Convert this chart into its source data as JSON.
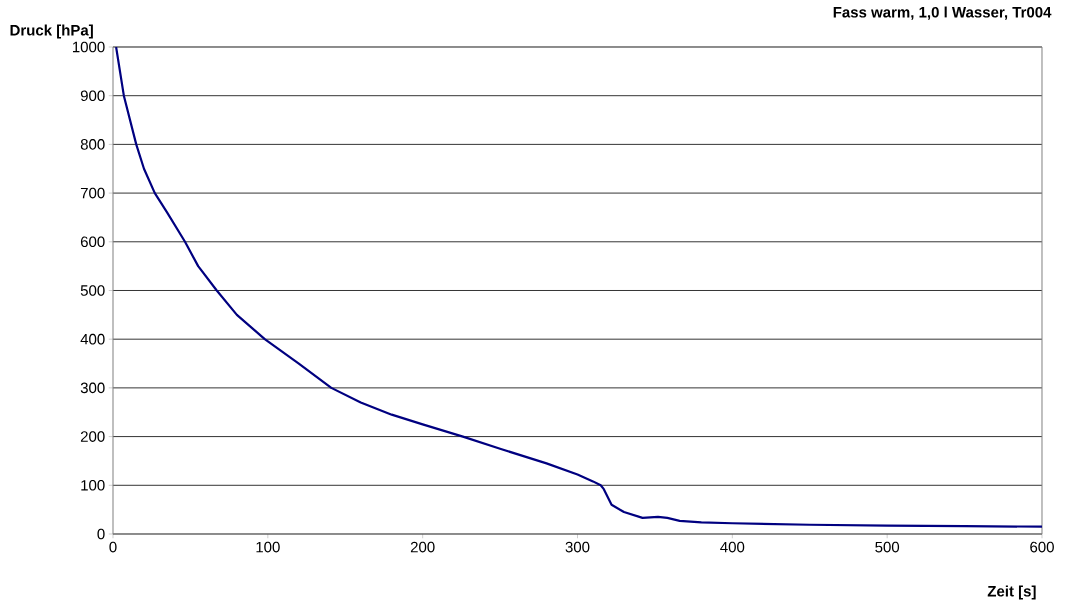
{
  "chart_data": {
    "type": "line",
    "title": "Fass warm, 1,0 l Wasser, Tr004",
    "xlabel": "Zeit [s]",
    "ylabel": "Druck [hPa]",
    "xlim": [
      0,
      600
    ],
    "ylim": [
      0,
      1000
    ],
    "xticks": [
      0,
      100,
      200,
      300,
      400,
      500,
      600
    ],
    "yticks": [
      0,
      100,
      200,
      300,
      400,
      500,
      600,
      700,
      800,
      900,
      1000
    ],
    "grid": "y",
    "marker": "none",
    "line_style": "solid",
    "series": [
      {
        "color": "#000080",
        "x": [
          2,
          7,
          15,
          20,
          27,
          35,
          46.5,
          55,
          67,
          80,
          98,
          120,
          141,
          160,
          180,
          200,
          226,
          250,
          280,
          300,
          310,
          315,
          317,
          322,
          330,
          342,
          352,
          358,
          366,
          380,
          400,
          450,
          500,
          550,
          600
        ],
        "values": [
          1000,
          900,
          800,
          750,
          700,
          660,
          600,
          550,
          500,
          450,
          400,
          350,
          300,
          270,
          245,
          225,
          200,
          175,
          145,
          122,
          108,
          100,
          92,
          60,
          45,
          33,
          35,
          33,
          27,
          24,
          22,
          19,
          17,
          16,
          15
        ]
      }
    ]
  }
}
